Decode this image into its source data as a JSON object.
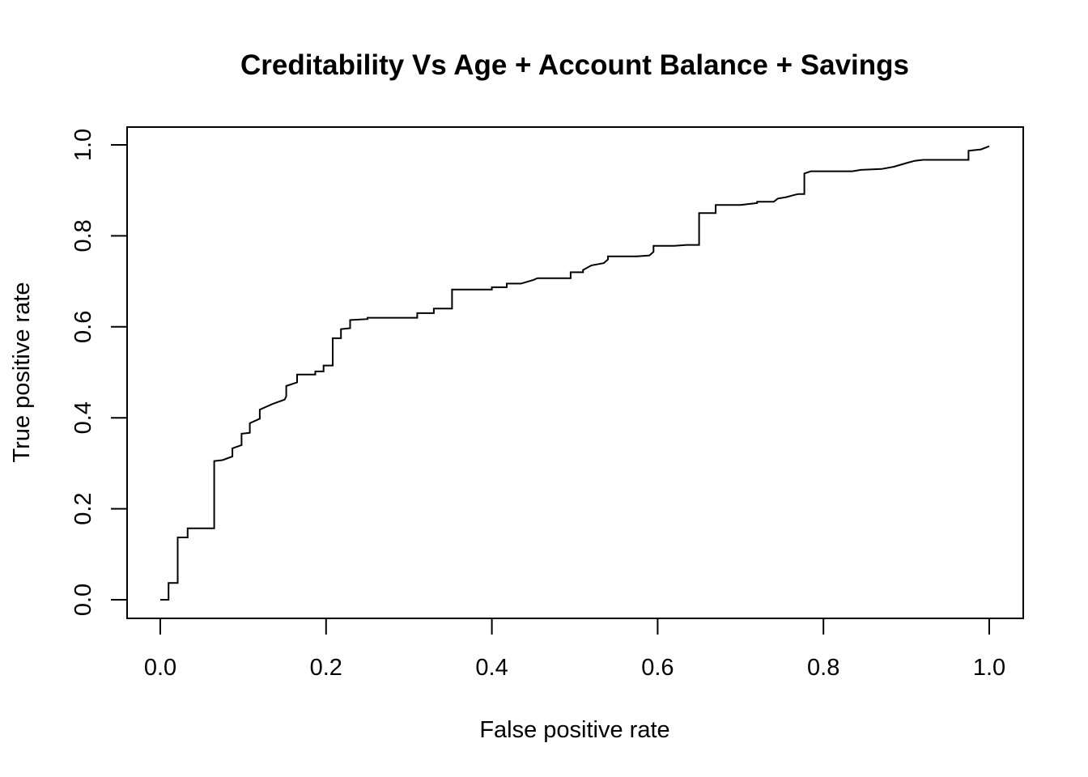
{
  "chart_data": {
    "type": "line",
    "title": "Creditability Vs Age + Account Balance + Savings",
    "xlabel": "False positive rate",
    "ylabel": "True positive rate",
    "xlim": [
      0,
      1
    ],
    "ylim": [
      0,
      1
    ],
    "x_ticks": [
      "0.0",
      "0.2",
      "0.4",
      "0.6",
      "0.8",
      "1.0"
    ],
    "y_ticks": [
      "0.0",
      "0.2",
      "0.4",
      "0.6",
      "0.8",
      "1.0"
    ],
    "grid": false,
    "legend": "none",
    "series": [
      {
        "color": "#000000",
        "points": [
          [
            0.0,
            0.0
          ],
          [
            0.01,
            0.0
          ],
          [
            0.01,
            0.037
          ],
          [
            0.021,
            0.037
          ],
          [
            0.021,
            0.137
          ],
          [
            0.033,
            0.137
          ],
          [
            0.033,
            0.157
          ],
          [
            0.065,
            0.157
          ],
          [
            0.065,
            0.305
          ],
          [
            0.075,
            0.307
          ],
          [
            0.087,
            0.315
          ],
          [
            0.087,
            0.333
          ],
          [
            0.098,
            0.34
          ],
          [
            0.098,
            0.365
          ],
          [
            0.108,
            0.367
          ],
          [
            0.108,
            0.388
          ],
          [
            0.12,
            0.398
          ],
          [
            0.12,
            0.418
          ],
          [
            0.135,
            0.43
          ],
          [
            0.15,
            0.44
          ],
          [
            0.152,
            0.447
          ],
          [
            0.152,
            0.47
          ],
          [
            0.165,
            0.478
          ],
          [
            0.165,
            0.495
          ],
          [
            0.187,
            0.495
          ],
          [
            0.187,
            0.502
          ],
          [
            0.197,
            0.502
          ],
          [
            0.197,
            0.515
          ],
          [
            0.208,
            0.515
          ],
          [
            0.208,
            0.575
          ],
          [
            0.218,
            0.575
          ],
          [
            0.218,
            0.595
          ],
          [
            0.229,
            0.597
          ],
          [
            0.229,
            0.615
          ],
          [
            0.25,
            0.617
          ],
          [
            0.25,
            0.62
          ],
          [
            0.31,
            0.62
          ],
          [
            0.31,
            0.63
          ],
          [
            0.33,
            0.63
          ],
          [
            0.33,
            0.64
          ],
          [
            0.352,
            0.64
          ],
          [
            0.352,
            0.682
          ],
          [
            0.4,
            0.682
          ],
          [
            0.4,
            0.687
          ],
          [
            0.418,
            0.687
          ],
          [
            0.418,
            0.695
          ],
          [
            0.435,
            0.695
          ],
          [
            0.45,
            0.703
          ],
          [
            0.455,
            0.707
          ],
          [
            0.495,
            0.707
          ],
          [
            0.495,
            0.72
          ],
          [
            0.51,
            0.72
          ],
          [
            0.51,
            0.725
          ],
          [
            0.52,
            0.735
          ],
          [
            0.535,
            0.74
          ],
          [
            0.54,
            0.748
          ],
          [
            0.54,
            0.755
          ],
          [
            0.575,
            0.755
          ],
          [
            0.59,
            0.757
          ],
          [
            0.595,
            0.765
          ],
          [
            0.595,
            0.778
          ],
          [
            0.62,
            0.778
          ],
          [
            0.635,
            0.78
          ],
          [
            0.65,
            0.78
          ],
          [
            0.65,
            0.85
          ],
          [
            0.67,
            0.85
          ],
          [
            0.67,
            0.868
          ],
          [
            0.7,
            0.868
          ],
          [
            0.72,
            0.872
          ],
          [
            0.72,
            0.875
          ],
          [
            0.74,
            0.875
          ],
          [
            0.745,
            0.882
          ],
          [
            0.755,
            0.885
          ],
          [
            0.765,
            0.89
          ],
          [
            0.77,
            0.892
          ],
          [
            0.777,
            0.892
          ],
          [
            0.777,
            0.937
          ],
          [
            0.785,
            0.942
          ],
          [
            0.835,
            0.942
          ],
          [
            0.845,
            0.945
          ],
          [
            0.87,
            0.947
          ],
          [
            0.885,
            0.952
          ],
          [
            0.9,
            0.96
          ],
          [
            0.91,
            0.965
          ],
          [
            0.92,
            0.967
          ],
          [
            0.975,
            0.967
          ],
          [
            0.975,
            0.987
          ],
          [
            0.99,
            0.99
          ],
          [
            1.0,
            0.997
          ]
        ]
      }
    ]
  }
}
